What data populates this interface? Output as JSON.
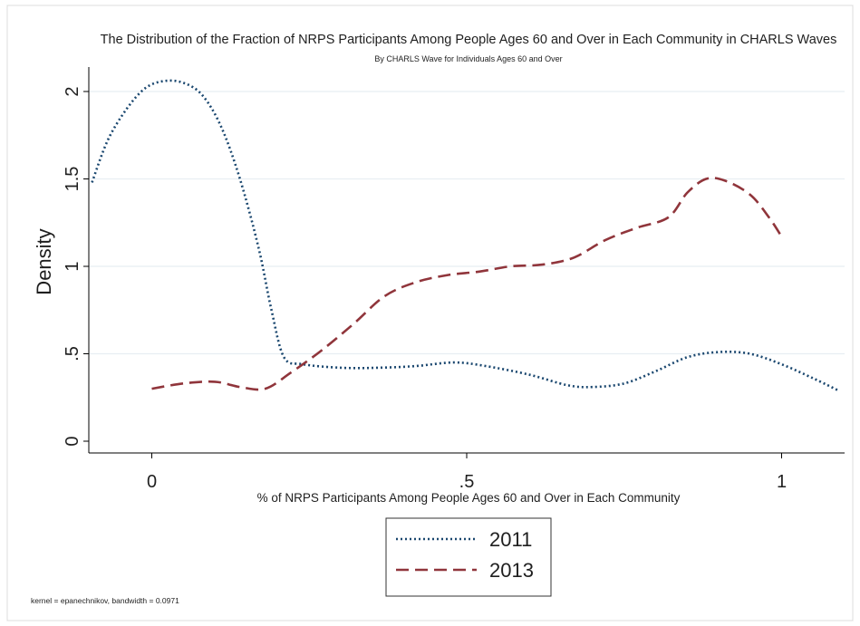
{
  "chart_data": {
    "type": "line",
    "title": "The Distribution of the Fraction of NRPS Participants Among People Ages 60 and Over in Each Community in CHARLS Waves",
    "subtitle": "By CHARLS Wave for Individuals Ages 60 and Over",
    "xlabel": "% of NRPS Participants Among People Ages 60 and Over in Each Community",
    "ylabel": "Density",
    "xlim": [
      -0.1,
      1.1
    ],
    "ylim": [
      0,
      2.1
    ],
    "xticks": [
      0,
      0.5,
      1
    ],
    "xtick_labels": [
      "0",
      ".5",
      "1"
    ],
    "yticks": [
      0,
      0.5,
      1,
      1.5,
      2
    ],
    "ytick_labels": [
      "0",
      ".5",
      "1",
      "1.5",
      "2"
    ],
    "grid": "horizontal",
    "legend_position": "bottom",
    "note": "kernel = epanechnikov, bandwidth = 0.0971",
    "series": [
      {
        "name": "2011",
        "color": "#1a476f",
        "style": "dotted",
        "points": [
          [
            -0.095,
            1.48
          ],
          [
            -0.07,
            1.72
          ],
          [
            -0.04,
            1.9
          ],
          [
            -0.01,
            2.02
          ],
          [
            0.02,
            2.06
          ],
          [
            0.05,
            2.05
          ],
          [
            0.08,
            1.98
          ],
          [
            0.11,
            1.8
          ],
          [
            0.14,
            1.5
          ],
          [
            0.17,
            1.1
          ],
          [
            0.19,
            0.75
          ],
          [
            0.21,
            0.48
          ],
          [
            0.24,
            0.44
          ],
          [
            0.3,
            0.42
          ],
          [
            0.36,
            0.42
          ],
          [
            0.42,
            0.43
          ],
          [
            0.48,
            0.45
          ],
          [
            0.53,
            0.43
          ],
          [
            0.6,
            0.38
          ],
          [
            0.66,
            0.32
          ],
          [
            0.7,
            0.31
          ],
          [
            0.75,
            0.33
          ],
          [
            0.8,
            0.4
          ],
          [
            0.85,
            0.48
          ],
          [
            0.9,
            0.51
          ],
          [
            0.95,
            0.5
          ],
          [
            1.0,
            0.44
          ],
          [
            1.05,
            0.36
          ],
          [
            1.09,
            0.29
          ]
        ]
      },
      {
        "name": "2013",
        "color": "#90353b",
        "style": "dashed",
        "points": [
          [
            0.0,
            0.3
          ],
          [
            0.05,
            0.33
          ],
          [
            0.1,
            0.34
          ],
          [
            0.14,
            0.31
          ],
          [
            0.18,
            0.3
          ],
          [
            0.22,
            0.39
          ],
          [
            0.27,
            0.52
          ],
          [
            0.32,
            0.67
          ],
          [
            0.37,
            0.83
          ],
          [
            0.42,
            0.91
          ],
          [
            0.47,
            0.95
          ],
          [
            0.52,
            0.97
          ],
          [
            0.57,
            1.0
          ],
          [
            0.62,
            1.01
          ],
          [
            0.67,
            1.05
          ],
          [
            0.72,
            1.15
          ],
          [
            0.77,
            1.22
          ],
          [
            0.82,
            1.28
          ],
          [
            0.85,
            1.42
          ],
          [
            0.88,
            1.5
          ],
          [
            0.91,
            1.49
          ],
          [
            0.95,
            1.41
          ],
          [
            0.98,
            1.28
          ],
          [
            1.0,
            1.17
          ]
        ]
      }
    ]
  }
}
